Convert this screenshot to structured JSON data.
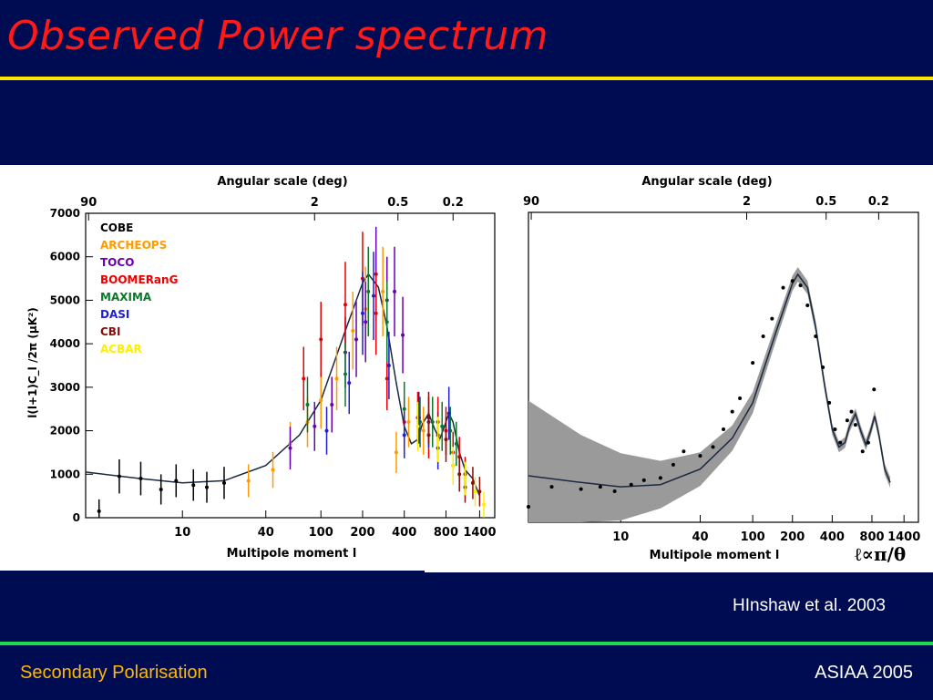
{
  "slide": {
    "title": "Observed Power spectrum",
    "citation": "HInshaw et al. 2003",
    "footer_left": "Secondary Polarisation",
    "footer_right": "ASIAA 2005",
    "relation_symbol": "ℓ∝π/θ",
    "colors": {
      "background": "#000c52",
      "title": "#ff1a1a",
      "top_rule": "#ffe400",
      "bottom_rule": "#1fd84b",
      "footer_left": "#ffb800"
    }
  },
  "chart_data": [
    {
      "type": "scatter",
      "top_axis_label": "Angular scale (deg)",
      "top_ticks": [
        "90",
        "2",
        "0.5",
        "0.2"
      ],
      "xlabel": "Multipole moment l",
      "ylabel": "l(l+1)C_l /2π (μK²)",
      "x_scale": "log",
      "x_ticks": [
        10,
        40,
        100,
        200,
        400,
        800,
        1400
      ],
      "y_ticks": [
        0,
        1000,
        2000,
        3000,
        4000,
        5000,
        6000,
        7000
      ],
      "ylim": [
        0,
        7000
      ],
      "legend_position": "top-left",
      "series": [
        {
          "name": "COBE",
          "color": "#000000",
          "points": [
            [
              2.5,
              150
            ],
            [
              3.5,
              950
            ],
            [
              5,
              900
            ],
            [
              7,
              650
            ],
            [
              9,
              850
            ],
            [
              12,
              750
            ],
            [
              15,
              700
            ],
            [
              20,
              800
            ]
          ]
        },
        {
          "name": "ARCHEOPS",
          "color": "#ff9a00",
          "points": [
            [
              30,
              850
            ],
            [
              45,
              1100
            ],
            [
              60,
              1700
            ],
            [
              80,
              2200
            ],
            [
              100,
              2700
            ],
            [
              130,
              3200
            ],
            [
              170,
              4300
            ],
            [
              210,
              4800
            ],
            [
              280,
              5200
            ],
            [
              350,
              1500
            ],
            [
              430,
              2200
            ],
            [
              550,
              2000
            ]
          ]
        },
        {
          "name": "TOCO",
          "color": "#6a00b0",
          "points": [
            [
              60,
              1600
            ],
            [
              90,
              2100
            ],
            [
              120,
              2600
            ],
            [
              150,
              3800
            ],
            [
              180,
              4100
            ],
            [
              210,
              4500
            ],
            [
              250,
              5600
            ],
            [
              300,
              5000
            ],
            [
              340,
              5200
            ],
            [
              390,
              4200
            ]
          ]
        },
        {
          "name": "BOOMERanG",
          "color": "#e60000",
          "points": [
            [
              75,
              3200
            ],
            [
              100,
              4100
            ],
            [
              150,
              4900
            ],
            [
              200,
              5500
            ],
            [
              250,
              4700
            ],
            [
              300,
              3200
            ],
            [
              400,
              2200
            ],
            [
              500,
              2300
            ],
            [
              600,
              1900
            ],
            [
              700,
              2200
            ],
            [
              800,
              2000
            ],
            [
              900,
              1500
            ],
            [
              1000,
              1400
            ],
            [
              1100,
              1000
            ]
          ]
        },
        {
          "name": "MAXIMA",
          "color": "#0a7a2a",
          "points": [
            [
              80,
              2600
            ],
            [
              150,
              3300
            ],
            [
              220,
              5200
            ],
            [
              300,
              4500
            ],
            [
              400,
              2500
            ],
            [
              520,
              2200
            ],
            [
              640,
              2200
            ],
            [
              750,
              2100
            ],
            [
              860,
              2000
            ],
            [
              950,
              1700
            ]
          ]
        },
        {
          "name": "DASI",
          "color": "#2020d0",
          "points": [
            [
              110,
              2000
            ],
            [
              160,
              3100
            ],
            [
              200,
              4700
            ],
            [
              240,
              5100
            ],
            [
              310,
              3500
            ],
            [
              400,
              1900
            ],
            [
              510,
              2300
            ],
            [
              600,
              2200
            ],
            [
              700,
              1600
            ],
            [
              840,
              2400
            ]
          ]
        },
        {
          "name": "CBI",
          "color": "#8b0a0a",
          "points": [
            [
              600,
              2300
            ],
            [
              700,
              1900
            ],
            [
              800,
              1800
            ],
            [
              900,
              1200
            ],
            [
              1000,
              1000
            ],
            [
              1100,
              700
            ],
            [
              1250,
              800
            ],
            [
              1400,
              600
            ]
          ]
        },
        {
          "name": "ACBAR",
          "color": "#ffee00",
          "points": [
            [
              500,
              2100
            ],
            [
              700,
              1800
            ],
            [
              900,
              1200
            ],
            [
              1100,
              900
            ],
            [
              1300,
              600
            ],
            [
              1500,
              300
            ]
          ]
        }
      ],
      "model_curve": [
        [
          2,
          1050
        ],
        [
          5,
          900
        ],
        [
          10,
          800
        ],
        [
          20,
          850
        ],
        [
          40,
          1200
        ],
        [
          70,
          1900
        ],
        [
          100,
          2700
        ],
        [
          150,
          4300
        ],
        [
          200,
          5400
        ],
        [
          220,
          5600
        ],
        [
          260,
          5300
        ],
        [
          300,
          4400
        ],
        [
          350,
          3100
        ],
        [
          400,
          2100
        ],
        [
          450,
          1700
        ],
        [
          500,
          1800
        ],
        [
          540,
          2150
        ],
        [
          600,
          2400
        ],
        [
          660,
          2050
        ],
        [
          720,
          1800
        ],
        [
          780,
          2100
        ],
        [
          840,
          2400
        ],
        [
          900,
          2200
        ],
        [
          1000,
          1500
        ],
        [
          1100,
          1100
        ],
        [
          1250,
          900
        ],
        [
          1400,
          500
        ]
      ]
    },
    {
      "type": "line",
      "top_axis_label": "Angular scale (deg)",
      "top_ticks": [
        "90",
        "2",
        "0.5",
        "0.2"
      ],
      "xlabel": "Multipole moment l",
      "x_scale": "log",
      "x_ticks": [
        10,
        40,
        100,
        200,
        400,
        800,
        1400
      ],
      "ylim": [
        0,
        7000
      ],
      "band": "grey cosmic-variance band around model",
      "points": [
        [
          2,
          350
        ],
        [
          3,
          800
        ],
        [
          5,
          750
        ],
        [
          7,
          800
        ],
        [
          9,
          700
        ],
        [
          12,
          850
        ],
        [
          15,
          950
        ],
        [
          20,
          1000
        ],
        [
          25,
          1300
        ],
        [
          30,
          1600
        ],
        [
          40,
          1500
        ],
        [
          50,
          1700
        ],
        [
          60,
          2100
        ],
        [
          70,
          2500
        ],
        [
          80,
          2800
        ],
        [
          100,
          3600
        ],
        [
          120,
          4200
        ],
        [
          140,
          4600
        ],
        [
          170,
          5300
        ],
        [
          200,
          5450
        ],
        [
          230,
          5350
        ],
        [
          260,
          4900
        ],
        [
          300,
          4200
        ],
        [
          340,
          3500
        ],
        [
          380,
          2700
        ],
        [
          420,
          2100
        ],
        [
          460,
          1800
        ],
        [
          520,
          2300
        ],
        [
          560,
          2500
        ],
        [
          600,
          2200
        ],
        [
          680,
          1600
        ],
        [
          750,
          1800
        ],
        [
          830,
          3000
        ]
      ],
      "model_curve": [
        [
          2,
          1050
        ],
        [
          5,
          900
        ],
        [
          10,
          800
        ],
        [
          20,
          850
        ],
        [
          40,
          1200
        ],
        [
          70,
          1900
        ],
        [
          100,
          2700
        ],
        [
          150,
          4300
        ],
        [
          200,
          5400
        ],
        [
          220,
          5600
        ],
        [
          260,
          5300
        ],
        [
          300,
          4400
        ],
        [
          350,
          3100
        ],
        [
          400,
          2100
        ],
        [
          450,
          1700
        ],
        [
          500,
          1800
        ],
        [
          540,
          2150
        ],
        [
          600,
          2450
        ],
        [
          660,
          2050
        ],
        [
          720,
          1750
        ],
        [
          780,
          2050
        ],
        [
          840,
          2400
        ],
        [
          900,
          2000
        ],
        [
          1000,
          1200
        ],
        [
          1100,
          900
        ]
      ]
    }
  ]
}
